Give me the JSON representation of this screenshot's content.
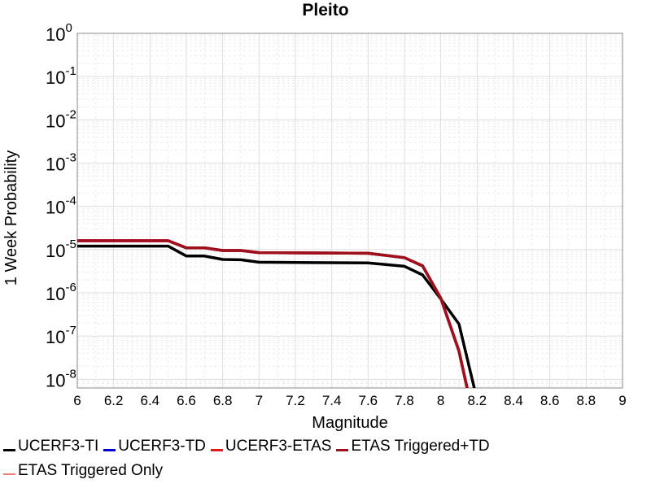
{
  "chart_data": {
    "type": "line",
    "title": "Pleito",
    "xlabel": "Magnitude",
    "ylabel": "1 Week Probability",
    "xlim": [
      6,
      9
    ],
    "ylim_exp": [
      -8.2,
      0
    ],
    "y_scale": "log",
    "grid": true,
    "x_ticks": [
      "6",
      "6.2",
      "6.4",
      "6.6",
      "6.8",
      "7",
      "7.2",
      "7.4",
      "7.6",
      "7.8",
      "8",
      "8.2",
      "8.4",
      "8.6",
      "8.8",
      "9"
    ],
    "y_ticks": [
      {
        "base": "10",
        "exp": "0",
        "value": 1
      },
      {
        "base": "10",
        "exp": "-1",
        "value": 0.1
      },
      {
        "base": "10",
        "exp": "-2",
        "value": 0.01
      },
      {
        "base": "10",
        "exp": "-3",
        "value": 0.001
      },
      {
        "base": "10",
        "exp": "-4",
        "value": 0.0001
      },
      {
        "base": "10",
        "exp": "-5",
        "value": 1e-05
      },
      {
        "base": "10",
        "exp": "-6",
        "value": 1e-06
      },
      {
        "base": "10",
        "exp": "-7",
        "value": 1e-07
      },
      {
        "base": "10",
        "exp": "-8",
        "value": 1e-08
      }
    ],
    "legend_position": "bottom",
    "series": [
      {
        "name": "ETAS Triggered Only",
        "color": "#f08080",
        "width": "thin",
        "x": [
          6.0,
          6.5,
          6.6,
          6.7,
          6.8,
          6.9,
          7.0,
          7.6,
          7.8,
          7.9,
          8.0,
          8.1,
          8.15
        ],
        "y": [
          1.6e-05,
          1.6e-05,
          1.1e-05,
          1.1e-05,
          9.5e-06,
          9.5e-06,
          8.5e-06,
          8.2e-06,
          6.5e-06,
          4.2e-06,
          7.5e-07,
          4.5e-08,
          5e-09
        ]
      },
      {
        "name": "UCERF3-TI",
        "color": "#000000",
        "width": "thick",
        "x": [
          6.0,
          6.5,
          6.6,
          6.7,
          6.8,
          6.9,
          7.0,
          7.6,
          7.8,
          7.9,
          8.0,
          8.1,
          8.19
        ],
        "y": [
          1.2e-05,
          1.2e-05,
          7.1e-06,
          7.1e-06,
          5.9e-06,
          5.8e-06,
          5.1e-06,
          4.9e-06,
          4.1e-06,
          2.6e-06,
          7.2e-07,
          1.9e-07,
          5e-09
        ]
      },
      {
        "name": "UCERF3-TD",
        "color": "#0000cc",
        "width": "thick",
        "x": [
          6.0,
          6.5,
          6.6,
          6.7,
          6.8,
          6.9,
          7.0,
          7.6,
          7.8,
          7.9,
          8.0,
          8.1,
          8.15
        ],
        "y": [
          1.6e-05,
          1.6e-05,
          1.1e-05,
          1.1e-05,
          9.5e-06,
          9.5e-06,
          8.5e-06,
          8.2e-06,
          6.5e-06,
          4.2e-06,
          7.5e-07,
          4.5e-08,
          5e-09
        ]
      },
      {
        "name": "UCERF3-ETAS",
        "color": "#e31a1a",
        "width": "thick",
        "x": [
          6.0,
          6.5,
          6.6,
          6.7,
          6.8,
          6.9,
          7.0,
          7.6,
          7.8,
          7.9,
          8.0,
          8.1,
          8.15
        ],
        "y": [
          1.6e-05,
          1.6e-05,
          1.1e-05,
          1.1e-05,
          9.5e-06,
          9.5e-06,
          8.5e-06,
          8.2e-06,
          6.5e-06,
          4.2e-06,
          7.5e-07,
          4.5e-08,
          5e-09
        ]
      },
      {
        "name": "ETAS Triggered+TD",
        "color": "#a0101a",
        "width": "thick",
        "x": [
          6.0,
          6.5,
          6.6,
          6.7,
          6.8,
          6.9,
          7.0,
          7.6,
          7.8,
          7.9,
          8.0,
          8.1,
          8.15
        ],
        "y": [
          1.6e-05,
          1.6e-05,
          1.1e-05,
          1.1e-05,
          9.5e-06,
          9.5e-06,
          8.5e-06,
          8.2e-06,
          6.5e-06,
          4.2e-06,
          7.5e-07,
          4.5e-08,
          5e-09
        ]
      }
    ]
  },
  "legend": {
    "items": [
      {
        "label": "UCERF3-TI",
        "color": "#000000"
      },
      {
        "label": "UCERF3-TD",
        "color": "#0000cc"
      },
      {
        "label": "UCERF3-ETAS",
        "color": "#e31a1a"
      },
      {
        "label": "ETAS Triggered+TD",
        "color": "#a0101a"
      },
      {
        "label": "ETAS Triggered Only",
        "color": "#f08080"
      }
    ]
  }
}
